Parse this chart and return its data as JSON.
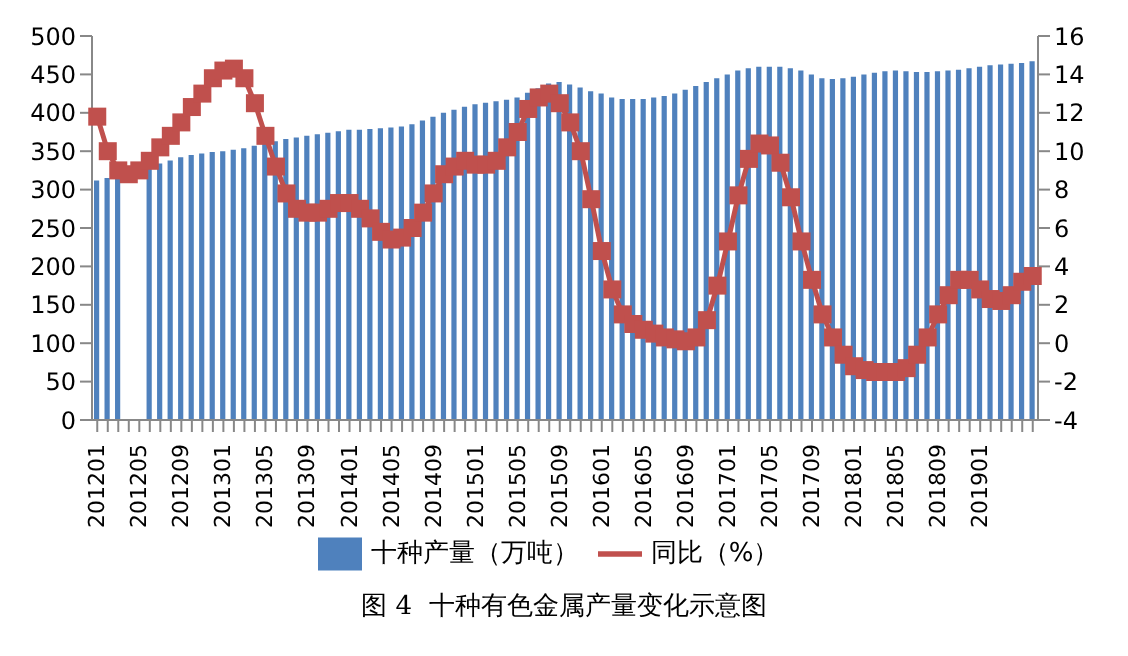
{
  "chart_data": {
    "type": "bar",
    "title": "图 4  十种有色金属产量变化示意图",
    "categories": [
      "201201",
      null,
      null,
      null,
      "201205",
      null,
      null,
      null,
      "201209",
      null,
      null,
      null,
      "201301",
      null,
      null,
      null,
      "201305",
      null,
      null,
      null,
      "201309",
      null,
      null,
      null,
      "201401",
      null,
      null,
      null,
      "201405",
      null,
      null,
      null,
      "201409",
      null,
      null,
      null,
      "201501",
      null,
      null,
      null,
      "201505",
      null,
      null,
      null,
      "201509",
      null,
      null,
      null,
      "201601",
      null,
      null,
      null,
      "201605",
      null,
      null,
      null,
      "201609",
      null,
      null,
      null,
      "201701",
      null,
      null,
      null,
      "201705",
      null,
      null,
      null,
      "201709",
      null,
      null,
      null,
      "201801",
      null,
      null,
      null,
      "201805",
      null,
      null,
      null,
      "201809",
      null,
      null,
      null,
      "201901",
      null,
      null,
      null,
      null,
      null
    ],
    "series": [
      {
        "name": "十种产量（万吨）",
        "color": "#4f81bd",
        "values": [
          312,
          315,
          318,
          null,
          null,
          330,
          334,
          338,
          342,
          345,
          347,
          349,
          350,
          352,
          354,
          357,
          360,
          363,
          366,
          368,
          370,
          372,
          374,
          376,
          378,
          378,
          379,
          380,
          381,
          382,
          385,
          390,
          395,
          400,
          404,
          408,
          411,
          413,
          415,
          417,
          420,
          426,
          432,
          438,
          440,
          437,
          433,
          428,
          425,
          420,
          418,
          418,
          418,
          420,
          422,
          425,
          430,
          435,
          440,
          445,
          450,
          455,
          458,
          460,
          460,
          460,
          458,
          455,
          450,
          445,
          444,
          445,
          447,
          450,
          452,
          454,
          455,
          454,
          453,
          453,
          454,
          455,
          456,
          458,
          460,
          462,
          463,
          464,
          465,
          467
        ]
      },
      {
        "name": "同比（%）",
        "type": "line",
        "axis": "y2",
        "color": "#c0504d",
        "values": [
          11.8,
          10,
          9,
          8.8,
          9,
          9.5,
          10.2,
          10.8,
          11.5,
          12.3,
          13,
          13.8,
          14.2,
          14.3,
          13.8,
          12.5,
          10.8,
          9.2,
          7.8,
          7,
          6.8,
          6.8,
          7,
          7.3,
          7.3,
          7,
          6.5,
          5.8,
          5.4,
          5.5,
          6,
          6.8,
          7.8,
          8.8,
          9.2,
          9.5,
          9.3,
          9.3,
          9.5,
          10.2,
          11,
          12.2,
          12.8,
          13,
          12.5,
          11.5,
          10,
          7.5,
          4.8,
          2.8,
          1.5,
          1,
          0.7,
          0.5,
          0.3,
          0.2,
          0.1,
          0.3,
          1.2,
          3,
          5.3,
          7.7,
          9.6,
          10.4,
          10.3,
          9.4,
          7.6,
          5.3,
          3.3,
          1.5,
          0.3,
          -0.6,
          -1.2,
          -1.4,
          -1.5,
          -1.5,
          -1.5,
          -1.3,
          -0.6,
          0.3,
          1.5,
          2.5,
          3.3,
          3.3,
          2.8,
          2.3,
          2.2,
          2.5,
          3.2,
          3.5
        ]
      }
    ],
    "ylim": [
      0,
      500
    ],
    "yticks": [
      0,
      50,
      100,
      150,
      200,
      250,
      300,
      350,
      400,
      450,
      500
    ],
    "y2lim": [
      -4,
      16
    ],
    "y2ticks": [
      -4,
      -2,
      0,
      2,
      4,
      6,
      8,
      10,
      12,
      14,
      16
    ],
    "grid": false,
    "legend": "bottom",
    "marker": "square",
    "line_style": "solid"
  }
}
